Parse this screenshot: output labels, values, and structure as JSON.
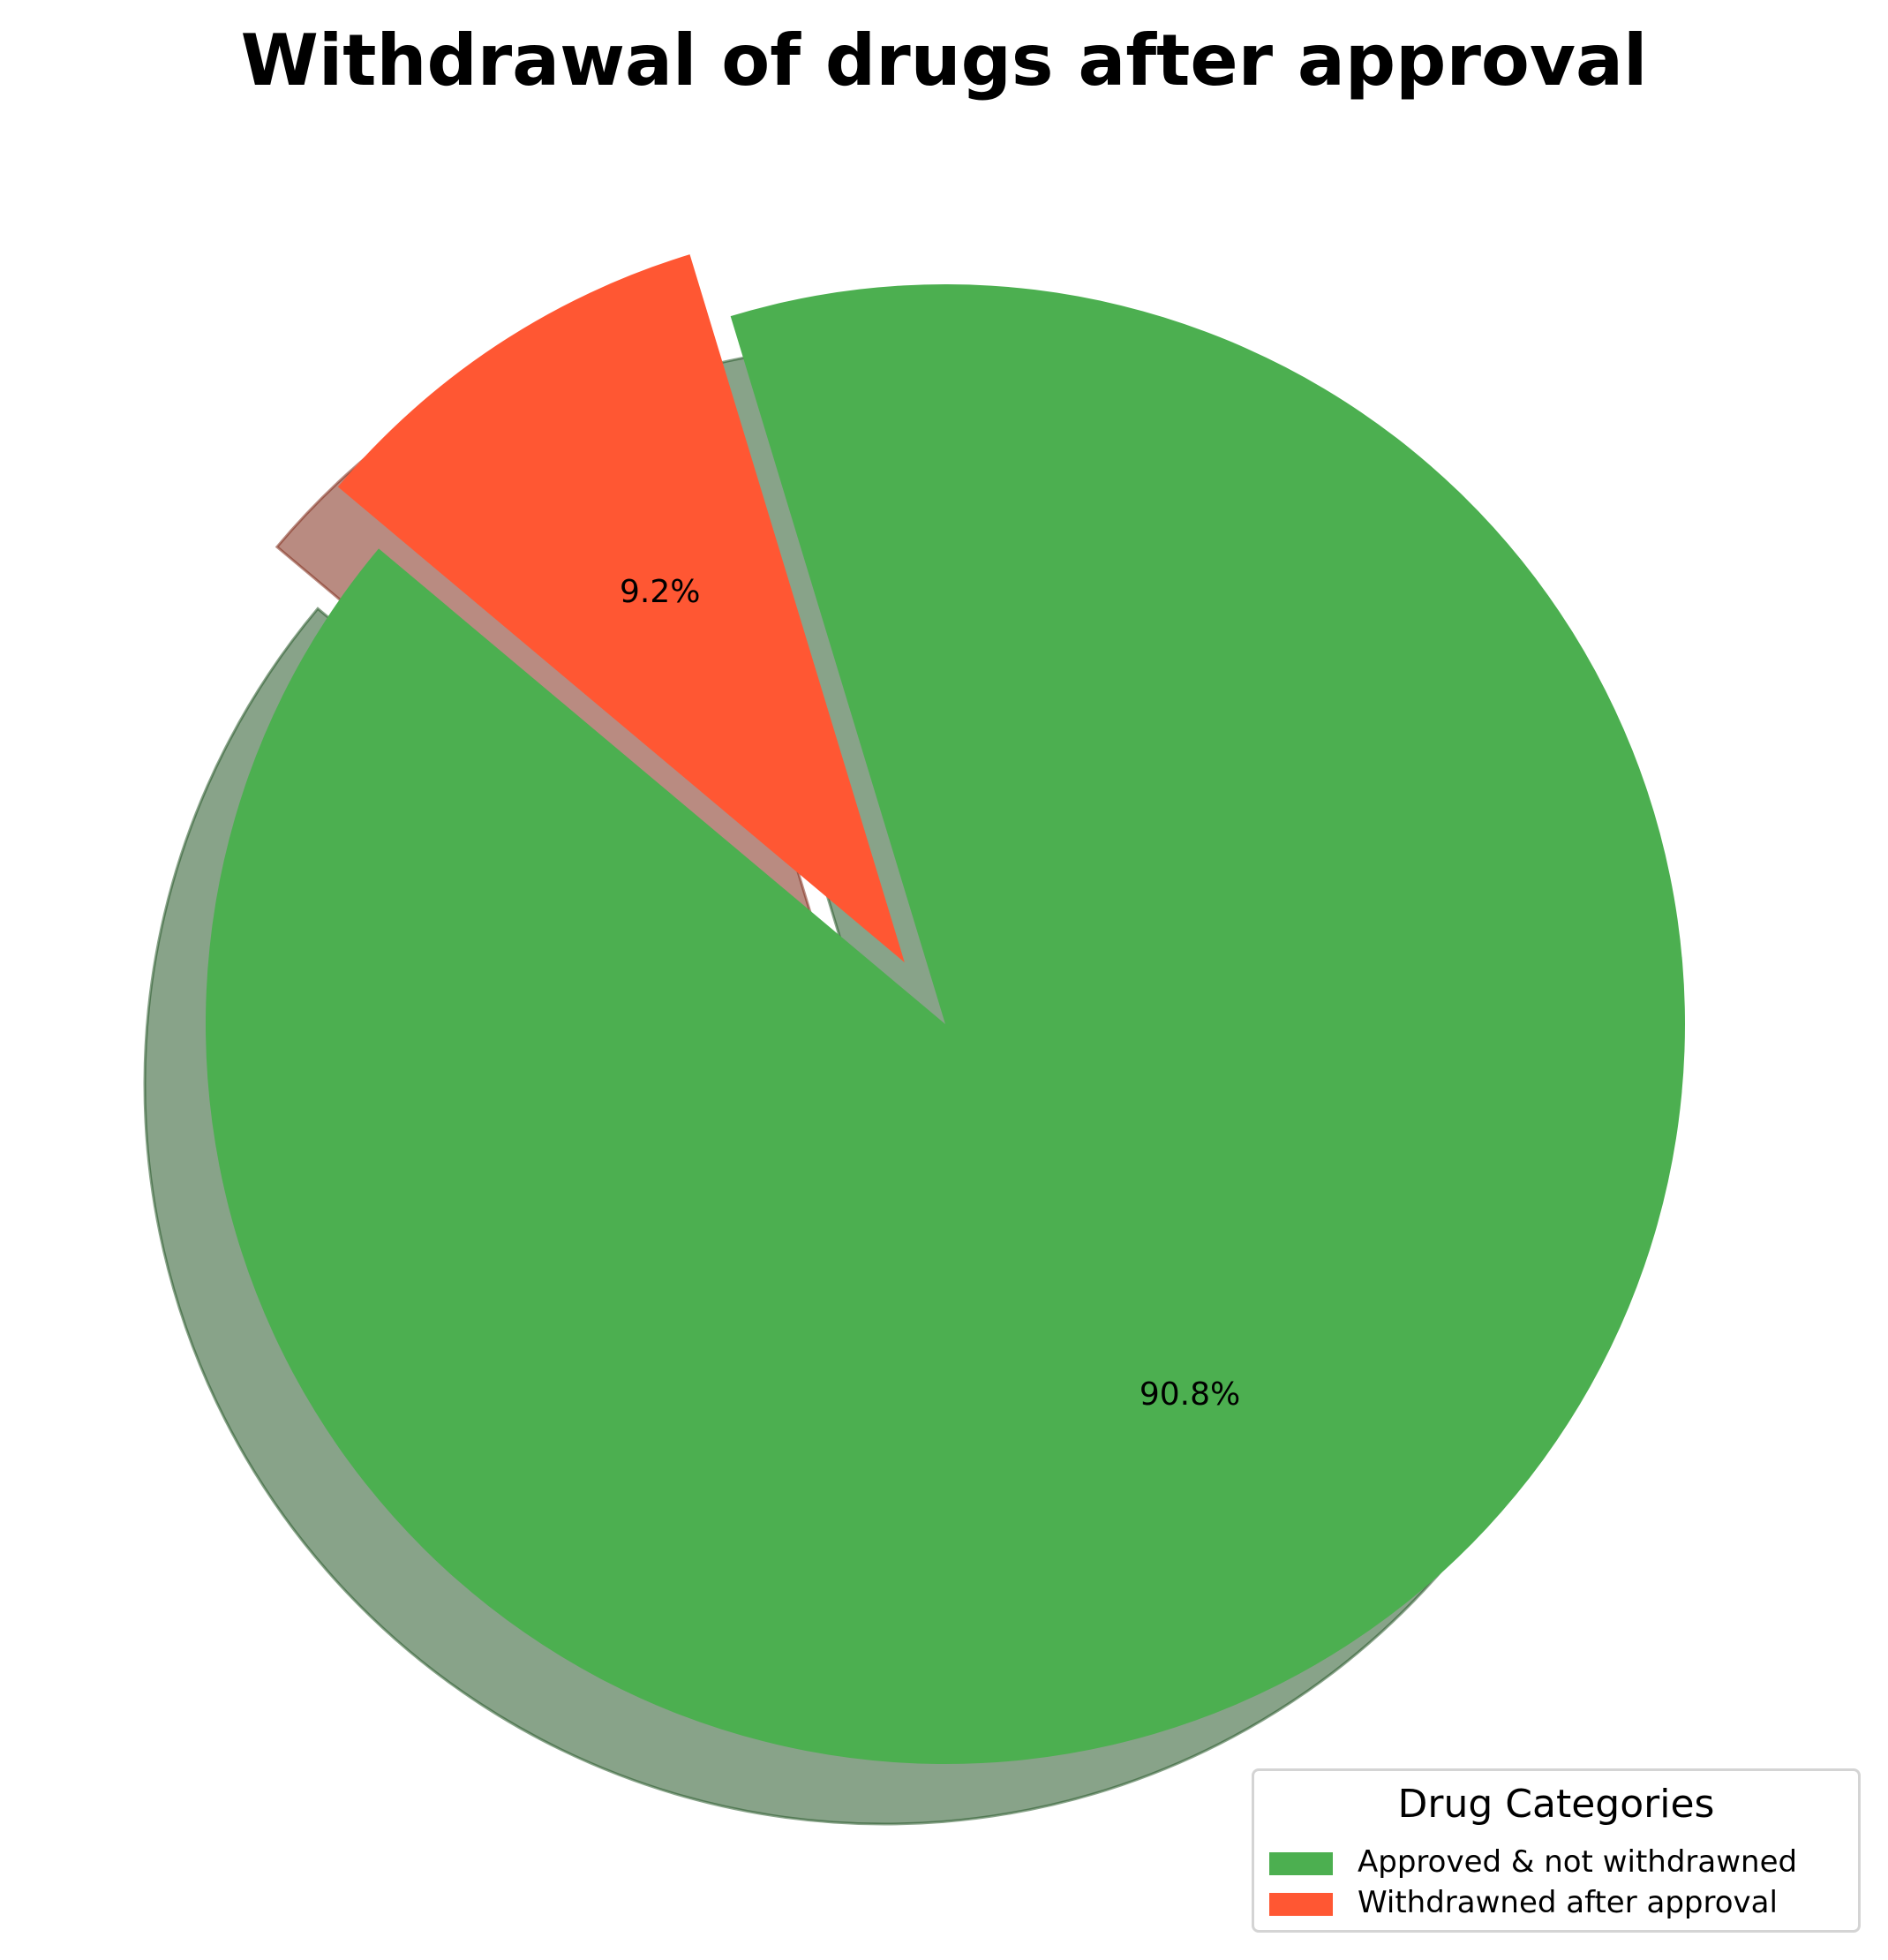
{
  "chart_data": {
    "type": "pie",
    "title": "Withdrawal of drugs after approval",
    "slices": [
      {
        "label": "Approved & not withdrawned",
        "value": 90.8,
        "display": "90.8%",
        "color": "#4caf50",
        "exploded": false
      },
      {
        "label": "Withdrawned after approval",
        "value": 9.2,
        "display": "9.2%",
        "color": "#ff5733",
        "exploded": true
      }
    ],
    "shadow": true,
    "legend": {
      "title": "Drug Categories",
      "placement": "bottom-right"
    }
  }
}
